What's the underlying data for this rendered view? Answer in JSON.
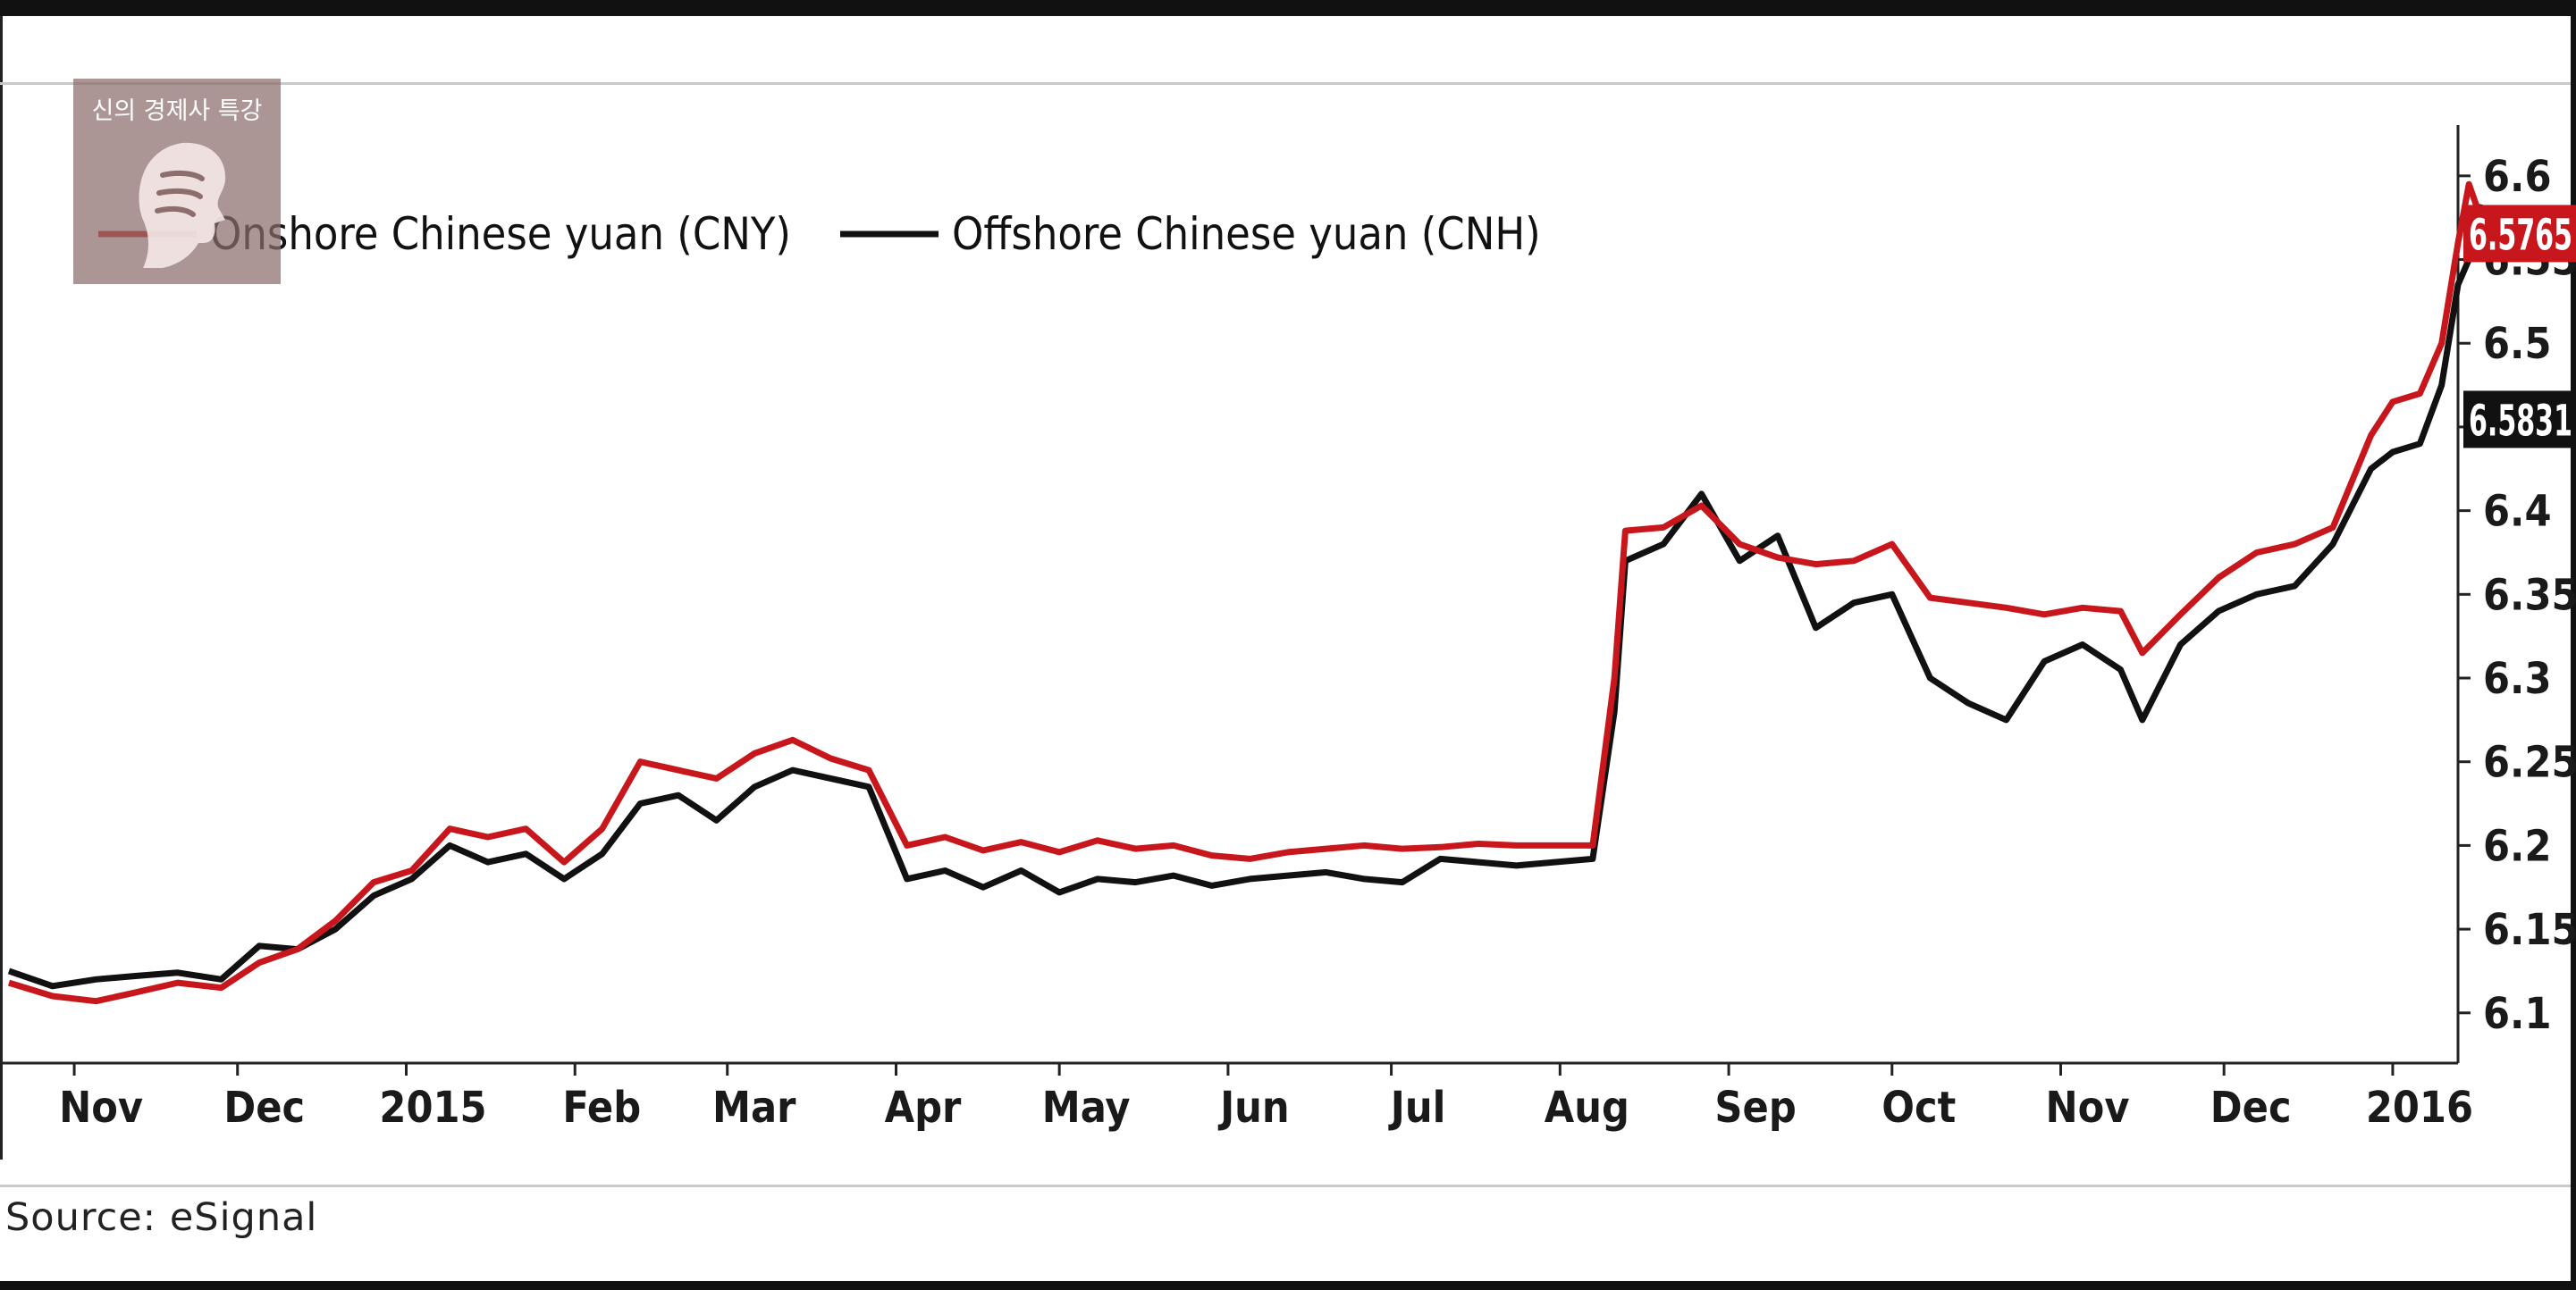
{
  "chart_data": {
    "type": "line",
    "xlabel": "",
    "ylabel": "",
    "ylim": [
      6.07,
      6.625
    ],
    "y_axis_position": "right",
    "y_ticks": [
      6.1,
      6.15,
      6.2,
      6.25,
      6.3,
      6.35,
      6.4,
      6.45,
      6.5,
      6.55,
      6.6
    ],
    "y_tick_labels": [
      "6.1",
      "6.15",
      "6.2",
      "6.25",
      "6.3",
      "6.35",
      "6.4",
      "6.45",
      "6.5",
      "6.55",
      "6.6"
    ],
    "x_ticks": [
      "2014-11-01",
      "2014-12-01",
      "2015-01-01",
      "2015-02-01",
      "2015-03-01",
      "2015-04-01",
      "2015-05-01",
      "2015-06-01",
      "2015-07-01",
      "2015-08-01",
      "2015-09-01",
      "2015-10-01",
      "2015-11-01",
      "2015-12-01",
      "2016-01-01"
    ],
    "x_tick_labels": [
      "Nov",
      "Dec",
      "2015",
      "Feb",
      "Mar",
      "Apr",
      "May",
      "Jun",
      "Jul",
      "Aug",
      "Sep",
      "Oct",
      "Nov",
      "Dec",
      "2016"
    ],
    "xlim": [
      "2014-10-20",
      "2016-01-13"
    ],
    "grid": false,
    "legend_position": "top-left",
    "series": [
      {
        "name": "Onshore Chinese yuan (CNY)",
        "color": "#c8171c",
        "last_value_label": "6.5765",
        "points": [
          [
            "2014-10-20",
            6.118
          ],
          [
            "2014-10-28",
            6.11
          ],
          [
            "2014-11-05",
            6.107
          ],
          [
            "2014-11-12",
            6.112
          ],
          [
            "2014-11-20",
            6.118
          ],
          [
            "2014-11-28",
            6.115
          ],
          [
            "2014-12-05",
            6.13
          ],
          [
            "2014-12-12",
            6.138
          ],
          [
            "2014-12-19",
            6.155
          ],
          [
            "2014-12-26",
            6.178
          ],
          [
            "2015-01-02",
            6.185
          ],
          [
            "2015-01-09",
            6.21
          ],
          [
            "2015-01-16",
            6.205
          ],
          [
            "2015-01-23",
            6.21
          ],
          [
            "2015-01-30",
            6.19
          ],
          [
            "2015-02-06",
            6.21
          ],
          [
            "2015-02-13",
            6.25
          ],
          [
            "2015-02-20",
            6.245
          ],
          [
            "2015-02-27",
            6.24
          ],
          [
            "2015-03-06",
            6.255
          ],
          [
            "2015-03-13",
            6.263
          ],
          [
            "2015-03-20",
            6.252
          ],
          [
            "2015-03-27",
            6.245
          ],
          [
            "2015-04-03",
            6.2
          ],
          [
            "2015-04-10",
            6.205
          ],
          [
            "2015-04-17",
            6.197
          ],
          [
            "2015-04-24",
            6.202
          ],
          [
            "2015-05-01",
            6.196
          ],
          [
            "2015-05-08",
            6.203
          ],
          [
            "2015-05-15",
            6.198
          ],
          [
            "2015-05-22",
            6.2
          ],
          [
            "2015-05-29",
            6.194
          ],
          [
            "2015-06-05",
            6.192
          ],
          [
            "2015-06-12",
            6.196
          ],
          [
            "2015-06-19",
            6.198
          ],
          [
            "2015-06-26",
            6.2
          ],
          [
            "2015-07-03",
            6.198
          ],
          [
            "2015-07-10",
            6.199
          ],
          [
            "2015-07-17",
            6.201
          ],
          [
            "2015-07-24",
            6.2
          ],
          [
            "2015-07-31",
            6.2
          ],
          [
            "2015-08-07",
            6.2
          ],
          [
            "2015-08-11",
            6.3
          ],
          [
            "2015-08-13",
            6.388
          ],
          [
            "2015-08-20",
            6.39
          ],
          [
            "2015-08-27",
            6.403
          ],
          [
            "2015-09-03",
            6.38
          ],
          [
            "2015-09-10",
            6.372
          ],
          [
            "2015-09-17",
            6.368
          ],
          [
            "2015-09-24",
            6.37
          ],
          [
            "2015-10-01",
            6.38
          ],
          [
            "2015-10-08",
            6.348
          ],
          [
            "2015-10-15",
            6.345
          ],
          [
            "2015-10-22",
            6.342
          ],
          [
            "2015-10-29",
            6.338
          ],
          [
            "2015-11-05",
            6.342
          ],
          [
            "2015-11-12",
            6.34
          ],
          [
            "2015-11-16",
            6.315
          ],
          [
            "2015-11-23",
            6.338
          ],
          [
            "2015-11-30",
            6.36
          ],
          [
            "2015-12-07",
            6.375
          ],
          [
            "2015-12-14",
            6.38
          ],
          [
            "2015-12-21",
            6.39
          ],
          [
            "2015-12-28",
            6.445
          ],
          [
            "2016-01-01",
            6.465
          ],
          [
            "2016-01-06",
            6.47
          ],
          [
            "2016-01-10",
            6.5
          ],
          [
            "2016-01-13",
            6.56
          ],
          [
            "2016-01-15",
            6.595
          ],
          [
            "2016-01-17",
            6.5765
          ]
        ]
      },
      {
        "name": "Offshore Chinese yuan (CNH)",
        "color": "#111111",
        "last_value_label": "6.5831",
        "points": [
          [
            "2014-10-20",
            6.125
          ],
          [
            "2014-10-28",
            6.116
          ],
          [
            "2014-11-05",
            6.12
          ],
          [
            "2014-11-12",
            6.122
          ],
          [
            "2014-11-20",
            6.124
          ],
          [
            "2014-11-28",
            6.12
          ],
          [
            "2014-12-05",
            6.14
          ],
          [
            "2014-12-12",
            6.138
          ],
          [
            "2014-12-19",
            6.15
          ],
          [
            "2014-12-26",
            6.17
          ],
          [
            "2015-01-02",
            6.18
          ],
          [
            "2015-01-09",
            6.2
          ],
          [
            "2015-01-16",
            6.19
          ],
          [
            "2015-01-23",
            6.195
          ],
          [
            "2015-01-30",
            6.18
          ],
          [
            "2015-02-06",
            6.195
          ],
          [
            "2015-02-13",
            6.225
          ],
          [
            "2015-02-20",
            6.23
          ],
          [
            "2015-02-27",
            6.215
          ],
          [
            "2015-03-06",
            6.235
          ],
          [
            "2015-03-13",
            6.245
          ],
          [
            "2015-03-20",
            6.24
          ],
          [
            "2015-03-27",
            6.235
          ],
          [
            "2015-04-03",
            6.18
          ],
          [
            "2015-04-10",
            6.185
          ],
          [
            "2015-04-17",
            6.175
          ],
          [
            "2015-04-24",
            6.185
          ],
          [
            "2015-05-01",
            6.172
          ],
          [
            "2015-05-08",
            6.18
          ],
          [
            "2015-05-15",
            6.178
          ],
          [
            "2015-05-22",
            6.182
          ],
          [
            "2015-05-29",
            6.176
          ],
          [
            "2015-06-05",
            6.18
          ],
          [
            "2015-06-12",
            6.182
          ],
          [
            "2015-06-19",
            6.184
          ],
          [
            "2015-06-26",
            6.18
          ],
          [
            "2015-07-03",
            6.178
          ],
          [
            "2015-07-10",
            6.192
          ],
          [
            "2015-07-17",
            6.19
          ],
          [
            "2015-07-24",
            6.188
          ],
          [
            "2015-07-31",
            6.19
          ],
          [
            "2015-08-07",
            6.192
          ],
          [
            "2015-08-11",
            6.28
          ],
          [
            "2015-08-13",
            6.37
          ],
          [
            "2015-08-20",
            6.38
          ],
          [
            "2015-08-27",
            6.41
          ],
          [
            "2015-09-03",
            6.37
          ],
          [
            "2015-09-10",
            6.385
          ],
          [
            "2015-09-17",
            6.33
          ],
          [
            "2015-09-24",
            6.345
          ],
          [
            "2015-10-01",
            6.35
          ],
          [
            "2015-10-08",
            6.3
          ],
          [
            "2015-10-15",
            6.285
          ],
          [
            "2015-10-22",
            6.275
          ],
          [
            "2015-10-29",
            6.31
          ],
          [
            "2015-11-05",
            6.32
          ],
          [
            "2015-11-12",
            6.305
          ],
          [
            "2015-11-16",
            6.275
          ],
          [
            "2015-11-23",
            6.32
          ],
          [
            "2015-11-30",
            6.34
          ],
          [
            "2015-12-07",
            6.35
          ],
          [
            "2015-12-14",
            6.355
          ],
          [
            "2015-12-21",
            6.38
          ],
          [
            "2015-12-28",
            6.425
          ],
          [
            "2016-01-01",
            6.435
          ],
          [
            "2016-01-06",
            6.44
          ],
          [
            "2016-01-10",
            6.475
          ],
          [
            "2016-01-13",
            6.535
          ],
          [
            "2016-01-15",
            6.55
          ],
          [
            "2016-01-17",
            6.5831
          ]
        ]
      }
    ]
  },
  "source": "Source: eSignal",
  "watermark": {
    "text": "신의 경제사 특강"
  }
}
